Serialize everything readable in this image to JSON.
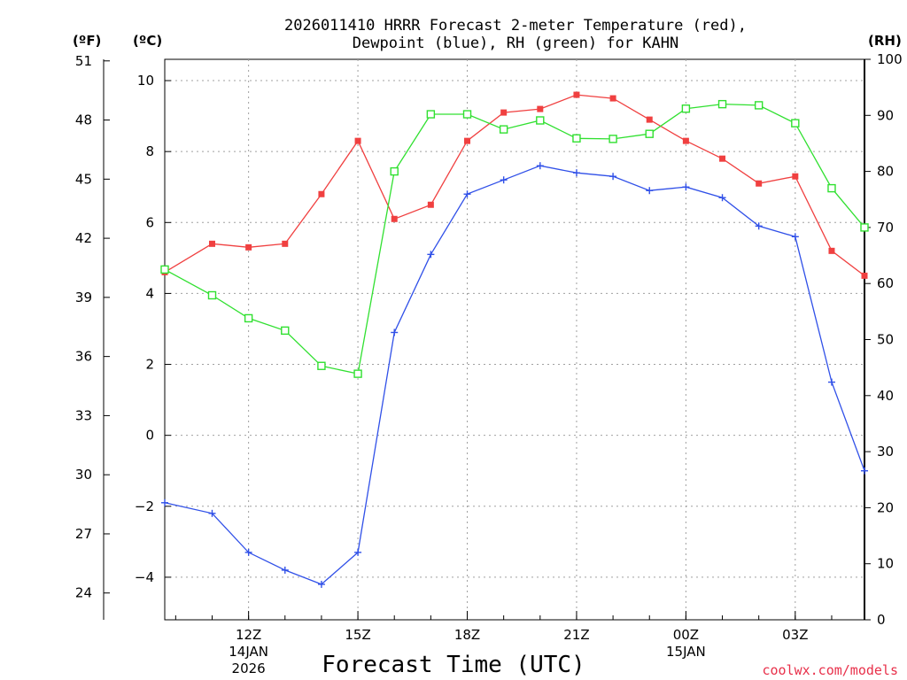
{
  "chart_data": {
    "type": "line",
    "title_line1": "2026011410 HRRR Forecast 2-meter Temperature (red),",
    "title_line2": "Dewpoint (blue), RH (green) for KAHN",
    "xlabel": "Forecast Time (UTC)",
    "credit": "coolwx.com/models",
    "units": {
      "left_f": "(ºF)",
      "left_c": "(ºC)",
      "right_rh": "(RH)"
    },
    "x_range_hours_utc": [
      9.7,
      28.9
    ],
    "x": [
      9.7,
      11,
      12,
      13,
      14,
      15,
      16,
      17,
      18,
      19,
      20,
      21,
      22,
      23,
      24,
      25,
      26,
      27,
      28,
      28.9
    ],
    "x_ticks": [
      {
        "hour": 12,
        "label": "12Z",
        "sub1": "14JAN",
        "sub2": "2026"
      },
      {
        "hour": 15,
        "label": "15Z",
        "sub1": "",
        "sub2": ""
      },
      {
        "hour": 18,
        "label": "18Z",
        "sub1": "",
        "sub2": ""
      },
      {
        "hour": 21,
        "label": "21Z",
        "sub1": "",
        "sub2": ""
      },
      {
        "hour": 24,
        "label": "00Z",
        "sub1": "15JAN",
        "sub2": ""
      },
      {
        "hour": 27,
        "label": "03Z",
        "sub1": "",
        "sub2": ""
      }
    ],
    "y_celsius_range": [
      -5.2,
      10.6
    ],
    "y_celsius_ticks": [
      "-4",
      "-2",
      "0",
      "2",
      "4",
      "6",
      "8",
      "10"
    ],
    "y_fahrenheit_ticks": [
      "24",
      "27",
      "30",
      "33",
      "36",
      "39",
      "42",
      "45",
      "48",
      "51"
    ],
    "y_rh_range": [
      0,
      100
    ],
    "y_rh_ticks": [
      "0",
      "10",
      "20",
      "30",
      "40",
      "50",
      "60",
      "70",
      "80",
      "90",
      "100"
    ],
    "series": [
      {
        "name": "Temperature",
        "axis": "celsius",
        "color": "#f04040",
        "marker": "filled-square",
        "values": [
          4.6,
          5.4,
          5.3,
          5.4,
          6.8,
          8.3,
          6.1,
          6.5,
          8.3,
          9.1,
          9.2,
          9.6,
          9.5,
          8.9,
          8.3,
          7.8,
          7.1,
          7.3,
          5.2,
          4.5
        ]
      },
      {
        "name": "Dewpoint",
        "axis": "celsius",
        "color": "#3050e8",
        "marker": "plus",
        "values": [
          -1.9,
          -2.2,
          -3.3,
          -3.8,
          -4.2,
          -3.3,
          2.9,
          5.1,
          6.8,
          7.2,
          7.6,
          7.4,
          7.3,
          6.9,
          7.0,
          6.7,
          5.9,
          5.6,
          1.5,
          -1.0
        ]
      },
      {
        "name": "RH",
        "axis": "rh",
        "color": "#30e030",
        "marker": "open-square",
        "values": [
          62.5,
          57.9,
          53.8,
          51.6,
          45.3,
          43.9,
          80.0,
          90.2,
          90.2,
          87.5,
          89.1,
          85.9,
          85.8,
          86.7,
          91.2,
          92.0,
          91.8,
          88.6,
          77.0,
          70.0
        ]
      }
    ]
  }
}
